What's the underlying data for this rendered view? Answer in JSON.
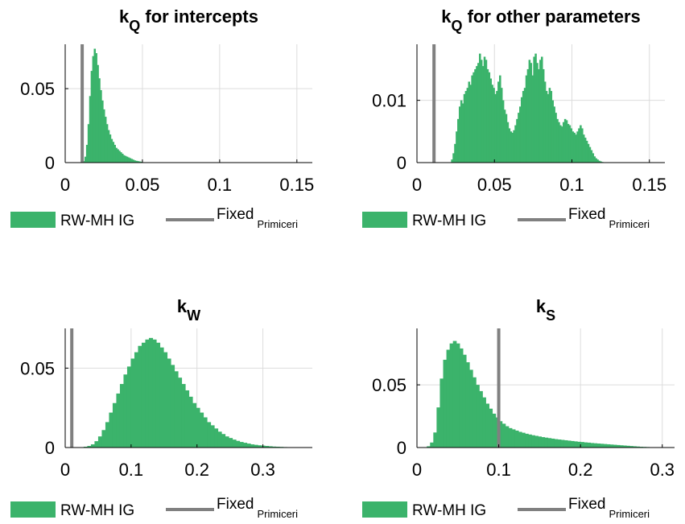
{
  "colors": {
    "hist": "#3bb36b",
    "fixed": "#808080",
    "grid": "#dcdcdc",
    "axis": "#000000"
  },
  "legend": {
    "hist_label": "RW-MH IG",
    "fixed_label": "Fixed",
    "fixed_sub": "Primiceri"
  },
  "chart_data": [
    {
      "type": "bar",
      "title": "k",
      "title_sub": "Q",
      "title_rest": " for intercepts",
      "xlim": [
        0,
        0.16
      ],
      "ylim": [
        0,
        0.08
      ],
      "xticks": [
        0,
        0.05,
        0.1,
        0.15
      ],
      "xtick_labels": [
        "0",
        "0.05",
        "0.1",
        "0.15"
      ],
      "yticks": [
        0,
        0.05
      ],
      "ytick_labels": [
        "0",
        "0.05"
      ],
      "grid": true,
      "fixed_x": 0.011,
      "bins": {
        "start": 0.0115,
        "width": 0.001,
        "values": [
          0.001,
          0.004,
          0.012,
          0.026,
          0.045,
          0.062,
          0.072,
          0.077,
          0.074,
          0.066,
          0.057,
          0.049,
          0.042,
          0.036,
          0.031,
          0.026,
          0.022,
          0.019,
          0.016,
          0.014,
          0.012,
          0.01,
          0.009,
          0.008,
          0.007,
          0.006,
          0.005,
          0.0045,
          0.004,
          0.0035,
          0.003,
          0.0025,
          0.002,
          0.0015,
          0.0012,
          0.001,
          0.0008,
          0.0006
        ]
      }
    },
    {
      "type": "bar",
      "title": "k",
      "title_sub": "Q",
      "title_rest": " for other parameters",
      "xlim": [
        0,
        0.16
      ],
      "ylim": [
        0,
        0.019
      ],
      "xticks": [
        0,
        0.05,
        0.1,
        0.15
      ],
      "xtick_labels": [
        "0",
        "0.05",
        "0.1",
        "0.15"
      ],
      "yticks": [
        0,
        0.01
      ],
      "ytick_labels": [
        "0",
        "0.01"
      ],
      "grid": true,
      "fixed_x": 0.011,
      "bins": {
        "start": 0.022,
        "width": 0.001,
        "values": [
          0.0005,
          0.0015,
          0.003,
          0.005,
          0.007,
          0.009,
          0.01,
          0.0095,
          0.011,
          0.0115,
          0.012,
          0.013,
          0.0125,
          0.014,
          0.0145,
          0.015,
          0.0155,
          0.016,
          0.0175,
          0.0165,
          0.0155,
          0.017,
          0.0165,
          0.015,
          0.0145,
          0.0135,
          0.0125,
          0.012,
          0.011,
          0.0115,
          0.013,
          0.014,
          0.012,
          0.01,
          0.0085,
          0.0078,
          0.0065,
          0.0055,
          0.005,
          0.0048,
          0.0052,
          0.006,
          0.007,
          0.008,
          0.009,
          0.0105,
          0.0115,
          0.012,
          0.014,
          0.015,
          0.0165,
          0.016,
          0.014,
          0.017,
          0.0175,
          0.016,
          0.015,
          0.0165,
          0.017,
          0.015,
          0.013,
          0.0115,
          0.011,
          0.012,
          0.0115,
          0.01,
          0.009,
          0.008,
          0.007,
          0.0065,
          0.006,
          0.0058,
          0.0065,
          0.007,
          0.0068,
          0.0062,
          0.006,
          0.0055,
          0.005,
          0.0048,
          0.0045,
          0.005,
          0.0055,
          0.006,
          0.0055,
          0.0045,
          0.004,
          0.0035,
          0.003,
          0.0025,
          0.002,
          0.0015,
          0.001,
          0.0007,
          0.0005,
          0.0003,
          0.0002,
          0.0001
        ]
      }
    },
    {
      "type": "bar",
      "title": "k",
      "title_sub": "W",
      "title_rest": "",
      "xlim": [
        0,
        0.375
      ],
      "ylim": [
        0,
        0.075
      ],
      "xticks": [
        0,
        0.1,
        0.2,
        0.3
      ],
      "xtick_labels": [
        "0",
        "0.1",
        "0.2",
        "0.3"
      ],
      "yticks": [
        0,
        0.05
      ],
      "ytick_labels": [
        "0",
        "0.05"
      ],
      "grid": true,
      "fixed_x": 0.01,
      "bins": {
        "start": 0.028,
        "width": 0.0055,
        "values": [
          0.0005,
          0.001,
          0.002,
          0.004,
          0.007,
          0.011,
          0.016,
          0.022,
          0.028,
          0.034,
          0.04,
          0.046,
          0.051,
          0.056,
          0.06,
          0.064,
          0.066,
          0.068,
          0.069,
          0.068,
          0.066,
          0.063,
          0.06,
          0.056,
          0.052,
          0.048,
          0.044,
          0.04,
          0.036,
          0.032,
          0.028,
          0.025,
          0.022,
          0.019,
          0.016,
          0.014,
          0.012,
          0.01,
          0.0085,
          0.007,
          0.006,
          0.005,
          0.0042,
          0.0035,
          0.003,
          0.0025,
          0.002,
          0.0017,
          0.0014,
          0.0012,
          0.001,
          0.0008,
          0.0006,
          0.0005,
          0.0004,
          0.0003,
          0.0002
        ]
      }
    },
    {
      "type": "bar",
      "title": "k",
      "title_sub": "S",
      "title_rest": "",
      "xlim": [
        0,
        0.315
      ],
      "ylim": [
        0,
        0.095
      ],
      "xticks": [
        0,
        0.1,
        0.2,
        0.3
      ],
      "xtick_labels": [
        "0",
        "0.1",
        "0.2",
        "0.3"
      ],
      "yticks": [
        0,
        0.05
      ],
      "ytick_labels": [
        "0",
        "0.05"
      ],
      "grid": true,
      "fixed_x": 0.1,
      "bins": {
        "start": 0.012,
        "width": 0.004,
        "values": [
          0.001,
          0.004,
          0.012,
          0.032,
          0.055,
          0.07,
          0.078,
          0.083,
          0.085,
          0.083,
          0.079,
          0.074,
          0.068,
          0.062,
          0.056,
          0.05,
          0.045,
          0.04,
          0.035,
          0.031,
          0.027,
          0.024,
          0.021,
          0.019,
          0.017,
          0.0155,
          0.0145,
          0.0135,
          0.0125,
          0.0118,
          0.011,
          0.0104,
          0.0098,
          0.0093,
          0.0088,
          0.0083,
          0.0079,
          0.0075,
          0.0071,
          0.0067,
          0.0064,
          0.0061,
          0.0058,
          0.0055,
          0.0052,
          0.0049,
          0.0046,
          0.0044,
          0.0041,
          0.0039,
          0.0036,
          0.0034,
          0.0032,
          0.003,
          0.0028,
          0.0026,
          0.0024,
          0.0022,
          0.002,
          0.0018,
          0.0016,
          0.0014,
          0.0012,
          0.001,
          0.0008,
          0.0006,
          0.0005,
          0.0004,
          0.0003,
          0.0002
        ]
      }
    }
  ]
}
